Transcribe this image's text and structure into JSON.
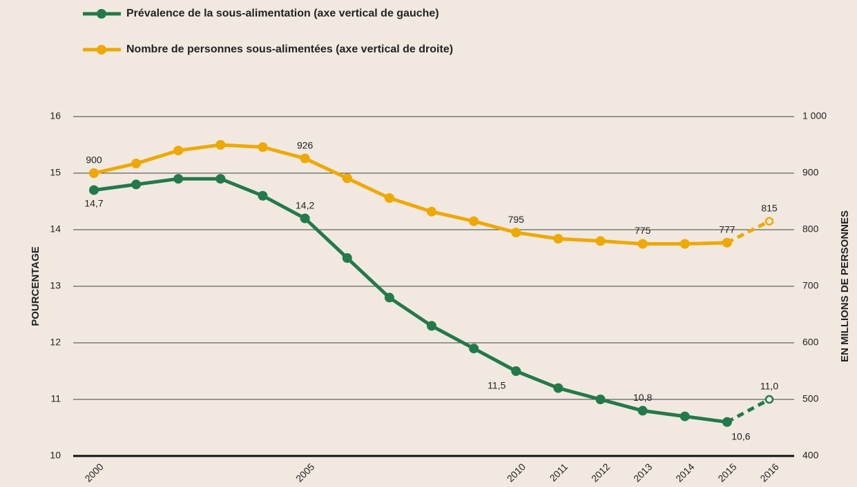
{
  "chart_data": {
    "type": "line",
    "categories": [
      "2000",
      null,
      null,
      null,
      null,
      "2005",
      null,
      null,
      null,
      null,
      "2010",
      "2011",
      "2012",
      "2013",
      "2014",
      "2015",
      "2016"
    ],
    "projected_from": "2015",
    "series": [
      {
        "name": "Prévalence de la sous-alimentation (axe vertical de gauche)",
        "color": "#23794a",
        "axis": "y",
        "values": [
          14.7,
          14.8,
          14.9,
          14.9,
          14.6,
          14.2,
          13.5,
          12.8,
          12.3,
          11.9,
          11.5,
          11.2,
          11.0,
          10.8,
          10.7,
          10.6,
          11.0
        ],
        "value_labels": [
          "14,7",
          null,
          null,
          null,
          null,
          "14,2",
          null,
          null,
          null,
          null,
          "11,5",
          null,
          null,
          "10,8",
          null,
          "10,6",
          "11,0"
        ]
      },
      {
        "name": "Nombre de personnes sous-alimentées (axe vertical de droite)",
        "color": "#eea800",
        "axis": "y2",
        "values": [
          900,
          917,
          940,
          950,
          946,
          926,
          891,
          856,
          832,
          815,
          795,
          784,
          780,
          775,
          775,
          777,
          815
        ],
        "value_labels": [
          "900",
          null,
          null,
          null,
          null,
          "926",
          null,
          null,
          null,
          null,
          "795",
          null,
          null,
          "775",
          null,
          "777",
          "815"
        ]
      }
    ],
    "ylabel": "POURCENTAGE",
    "y2label": "EN MILLIONS DE PERSONNES",
    "ylim": [
      10,
      16
    ],
    "yticks": [
      10,
      11,
      12,
      13,
      14,
      15,
      16
    ],
    "y2lim": [
      400,
      1000
    ],
    "y2ticks": [
      400,
      500,
      600,
      700,
      800,
      900,
      {
        "value": 1000,
        "label": "1 000"
      }
    ],
    "grid": true
  }
}
